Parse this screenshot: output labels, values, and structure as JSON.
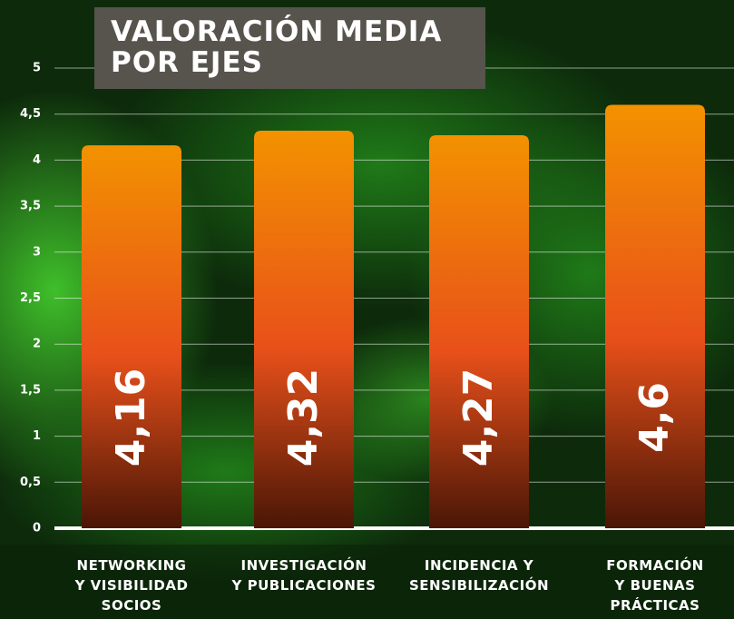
{
  "chart_data": {
    "type": "bar",
    "title": "VALORACIÓN MEDIA\nPOR EJES",
    "categories": [
      "NETWORKING\nY VISIBILIDAD\nSOCIOS",
      "INVESTIGACIÓN\nY PUBLICACIONES",
      "INCIDENCIA Y\nSENSIBILIZACIÓN",
      "FORMACIÓN\nY BUENAS\nPRÁCTICAS"
    ],
    "values": [
      4.16,
      4.32,
      4.27,
      4.6
    ],
    "value_labels": [
      "4,16",
      "4,32",
      "4,27",
      "4,6"
    ],
    "color": "#e8501a",
    "ylim": [
      0,
      5
    ],
    "yticks": [
      0,
      {
        "value": 0.5,
        "label": "0,5"
      },
      1,
      {
        "value": 1.5,
        "label": "1,5"
      },
      2,
      {
        "value": 2.5,
        "label": "2,5"
      },
      3,
      {
        "value": 3.5,
        "label": "3,5"
      },
      4,
      {
        "value": 4.5,
        "label": "4,5"
      },
      5
    ],
    "grid": true
  }
}
